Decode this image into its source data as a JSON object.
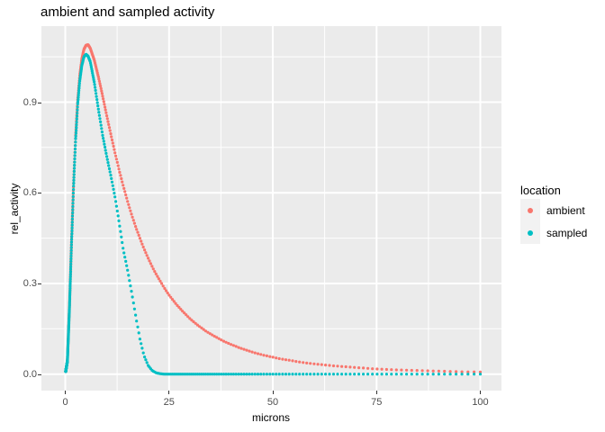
{
  "title": "ambient and sampled activity",
  "axes": {
    "x": {
      "label": "microns",
      "ticks": [
        {
          "label": "0",
          "value": 0
        },
        {
          "label": "25",
          "value": 25
        },
        {
          "label": "50",
          "value": 50
        },
        {
          "label": "75",
          "value": 75
        },
        {
          "label": "100",
          "value": 100
        }
      ]
    },
    "y": {
      "label": "rel_activity",
      "ticks": [
        {
          "label": "0.0",
          "value": 0
        },
        {
          "label": "0.3",
          "value": 0.3
        },
        {
          "label": "0.6",
          "value": 0.6
        },
        {
          "label": "0.9",
          "value": 0.9
        }
      ]
    }
  },
  "legend": {
    "title": "location",
    "items": [
      {
        "label": "ambient",
        "color": "#F8766D"
      },
      {
        "label": "sampled",
        "color": "#00BFC4"
      }
    ]
  },
  "colors": {
    "panel_background": "#EBEBEB",
    "gridline": "#FFFFFF",
    "tick_text": "#4D4D4D",
    "tick_mark": "#333333",
    "ambient": "#F8766D",
    "sampled": "#00BFC4"
  },
  "chart_data": {
    "type": "scatter",
    "title": "ambient and sampled activity",
    "xlabel": "microns",
    "ylabel": "rel_activity",
    "xlim": [
      0,
      100
    ],
    "x_major_ticks": [
      0,
      25,
      50,
      75,
      100
    ],
    "x_minor": [
      12.5,
      37.5,
      62.5,
      87.5
    ],
    "y_major_ticks": [
      0,
      0.3,
      0.6,
      0.9
    ],
    "y_minor": [
      0.15,
      0.45,
      0.75,
      1.05
    ],
    "grid": "white major and minor gridlines on grey panel",
    "legend_position": "right",
    "point_style": "small dots, log-spaced along x (dense at left, separated at right)",
    "series": [
      {
        "name": "ambient",
        "color": "#F8766D",
        "peak": {
          "x": 5.5,
          "y": 1.09
        },
        "points": [
          [
            0,
            0
          ],
          [
            0.5,
            0.043
          ],
          [
            1,
            0.218
          ],
          [
            1.5,
            0.435
          ],
          [
            2,
            0.632
          ],
          [
            2.5,
            0.79
          ],
          [
            3,
            0.908
          ],
          [
            3.5,
            0.99
          ],
          [
            4,
            1.044
          ],
          [
            4.5,
            1.075
          ],
          [
            5,
            1.088
          ],
          [
            5.5,
            1.09
          ],
          [
            6,
            1.079
          ],
          [
            7,
            1.039
          ],
          [
            8,
            0.983
          ],
          [
            9,
            0.92
          ],
          [
            10,
            0.855
          ],
          [
            11,
            0.792
          ],
          [
            12,
            0.731
          ],
          [
            13,
            0.674
          ],
          [
            14,
            0.621
          ],
          [
            15,
            0.572
          ],
          [
            16,
            0.527
          ],
          [
            17,
            0.486
          ],
          [
            18,
            0.449
          ],
          [
            19,
            0.414
          ],
          [
            20,
            0.383
          ],
          [
            21,
            0.354
          ],
          [
            22,
            0.328
          ],
          [
            23,
            0.305
          ],
          [
            24,
            0.282
          ],
          [
            25,
            0.262
          ],
          [
            26,
            0.244
          ],
          [
            27,
            0.227
          ],
          [
            28,
            0.212
          ],
          [
            29,
            0.198
          ],
          [
            30,
            0.184
          ],
          [
            32,
            0.161
          ],
          [
            34,
            0.141
          ],
          [
            36,
            0.125
          ],
          [
            38,
            0.11
          ],
          [
            40,
            0.098
          ],
          [
            42,
            0.087
          ],
          [
            44,
            0.078
          ],
          [
            46,
            0.069
          ],
          [
            48,
            0.062
          ],
          [
            50,
            0.056
          ],
          [
            52,
            0.05
          ],
          [
            54,
            0.046
          ],
          [
            56,
            0.041
          ],
          [
            58,
            0.037
          ],
          [
            60,
            0.034
          ],
          [
            65,
            0.027
          ],
          [
            70,
            0.022
          ],
          [
            75,
            0.017
          ],
          [
            80,
            0.014
          ],
          [
            85,
            0.012
          ],
          [
            90,
            0.01
          ],
          [
            95,
            0.008
          ],
          [
            100,
            0.007
          ]
        ]
      },
      {
        "name": "sampled",
        "color": "#00BFC4",
        "peak": {
          "x": 5,
          "y": 1.058
        },
        "points": [
          [
            0,
            0
          ],
          [
            0.5,
            0.042
          ],
          [
            1,
            0.215
          ],
          [
            1.5,
            0.428
          ],
          [
            2,
            0.623
          ],
          [
            2.5,
            0.778
          ],
          [
            3,
            0.894
          ],
          [
            3.5,
            0.972
          ],
          [
            4,
            1.022
          ],
          [
            4.5,
            1.05
          ],
          [
            5,
            1.058
          ],
          [
            5.5,
            1.052
          ],
          [
            6,
            1.035
          ],
          [
            7,
            0.965
          ],
          [
            8,
            0.875
          ],
          [
            9,
            0.79
          ],
          [
            10,
            0.72
          ],
          [
            11,
            0.655
          ],
          [
            12,
            0.585
          ],
          [
            13,
            0.5
          ],
          [
            14,
            0.41
          ],
          [
            15,
            0.345
          ],
          [
            16,
            0.27
          ],
          [
            17,
            0.19
          ],
          [
            18,
            0.115
          ],
          [
            19,
            0.06
          ],
          [
            20,
            0.028
          ],
          [
            21,
            0.011
          ],
          [
            22,
            0.004
          ],
          [
            23,
            0.001
          ],
          [
            24,
            0
          ],
          [
            30,
            0
          ],
          [
            40,
            0
          ],
          [
            50,
            0
          ],
          [
            60,
            0
          ],
          [
            70,
            0
          ],
          [
            80,
            0
          ],
          [
            90,
            0
          ],
          [
            100,
            0
          ]
        ]
      }
    ]
  }
}
